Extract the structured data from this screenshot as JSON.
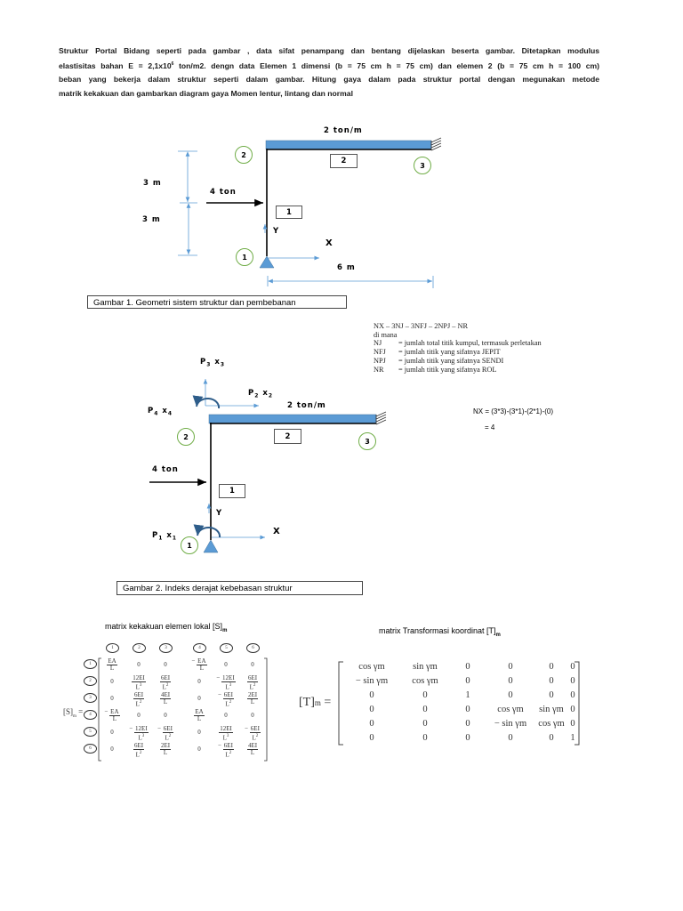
{
  "intro": {
    "line1": "Struktur Portal Bidang seperti pada gambar , data sifat penampang dan bentang dijelaskan beserta gambar. Ditetapkan modulus",
    "line2_a": "elastisitas bahan E  = 2,1x10",
    "line2_sup": "6",
    "line2_b": " ton/m2.  dengn data Elemen 1  dimensi (b = 75 cm  h = 75 cm) dan elemen 2 (b = 75 cm  h = 100 cm)",
    "line3": "beban yang bekerja dalam struktur seperti dalam gambar. Hitung gaya dalam pada struktur portal dengan megunakan metode",
    "line4": "matrik kekakuan dan gambarkan diagram gaya Momen lentur, lintang dan normal"
  },
  "figure1": {
    "distributed_load": "2 ton/m",
    "point_load": "4 ton",
    "dim_upper": "3 m",
    "dim_lower": "3 m",
    "dim_span": "6 m",
    "axis_x": "X",
    "axis_y": "Y",
    "nodes": [
      "1",
      "2",
      "3"
    ],
    "elements": [
      "1",
      "2"
    ],
    "caption": "Gambar 1. Geometri sistem struktur dan pembebanan"
  },
  "legend": {
    "formula": "NX – 3NJ – 3NFJ – 2NPJ – NR",
    "di_mana": "di mana",
    "items": [
      {
        "key": "NJ",
        "desc": "= jumlah total titik kumpul, termasuk perletakan"
      },
      {
        "key": "NFJ",
        "desc": "= jumlah titik yang sifatnya JEPIT"
      },
      {
        "key": "NPJ",
        "desc": "= jumlah titik yang sifatnya SENDI"
      },
      {
        "key": "NR",
        "desc": "= jumlah titik yang sifatnya ROL"
      }
    ]
  },
  "figure2": {
    "p3": "P",
    "p3_sub": "3",
    "x3": "x",
    "x3_sub": "3",
    "p2": "P",
    "p2_sub": "2",
    "x2": "x",
    "x2_sub": "2",
    "p4": "P",
    "p4_sub": "4",
    "x4": "x",
    "x4_sub": "4",
    "p1": "P",
    "p1_sub": "1",
    "x1": "x",
    "x1_sub": "1",
    "distributed_load": "2 ton/m",
    "point_load": "4 ton",
    "axis_x": "X",
    "axis_y": "Y",
    "nodes": [
      "1",
      "2",
      "3"
    ],
    "elements": [
      "1",
      "2"
    ],
    "caption": "Gambar 2. Indeks derajat kebebasan struktur"
  },
  "nx_calc": {
    "line1": "NX =  (3*3)-(3*1)-(2*1)-(0)",
    "line2": "= 4"
  },
  "stiffness_matrix": {
    "title": "matrix kekakuan elemen lokal [S]",
    "title_sub": "m",
    "label": "[S]",
    "label_sub": "m",
    "dof": [
      "1",
      "2",
      "3",
      "4",
      "5",
      "6"
    ],
    "rows": [
      [
        "EA/L",
        "0",
        "0",
        "-EA/L",
        "0",
        "0"
      ],
      [
        "0",
        "12EI/L3",
        "6EI/L2",
        "0",
        "-12EI/L3",
        "6EI/L2"
      ],
      [
        "0",
        "6EI/L2",
        "4EI/L",
        "0",
        "-6EI/L2",
        "2EI/L"
      ],
      [
        "-EA/L",
        "0",
        "0",
        "EA/L",
        "0",
        "0"
      ],
      [
        "0",
        "-12EI/L3",
        "-6EI/L2",
        "0",
        "12EI/L3",
        "-6EI/L2"
      ],
      [
        "0",
        "6EI/L2",
        "2EI/L",
        "0",
        "-6EI/L2",
        "4EI/L"
      ]
    ]
  },
  "transform_matrix": {
    "title": "matrix Transformasi koordinat [T]",
    "title_sub": "m",
    "label": "[T]",
    "label_sub": "m",
    "rows": [
      [
        "cos γm",
        "sin γm",
        "0",
        "0",
        "0",
        "0"
      ],
      [
        "− sin γm",
        "cos γm",
        "0",
        "0",
        "0",
        "0"
      ],
      [
        "0",
        "0",
        "1",
        "0",
        "0",
        "0"
      ],
      [
        "0",
        "0",
        "0",
        "cos γm",
        "sin γm",
        "0"
      ],
      [
        "0",
        "0",
        "0",
        "− sin γm",
        "cos γm",
        "0"
      ],
      [
        "0",
        "0",
        "0",
        "0",
        "0",
        "1"
      ]
    ]
  }
}
